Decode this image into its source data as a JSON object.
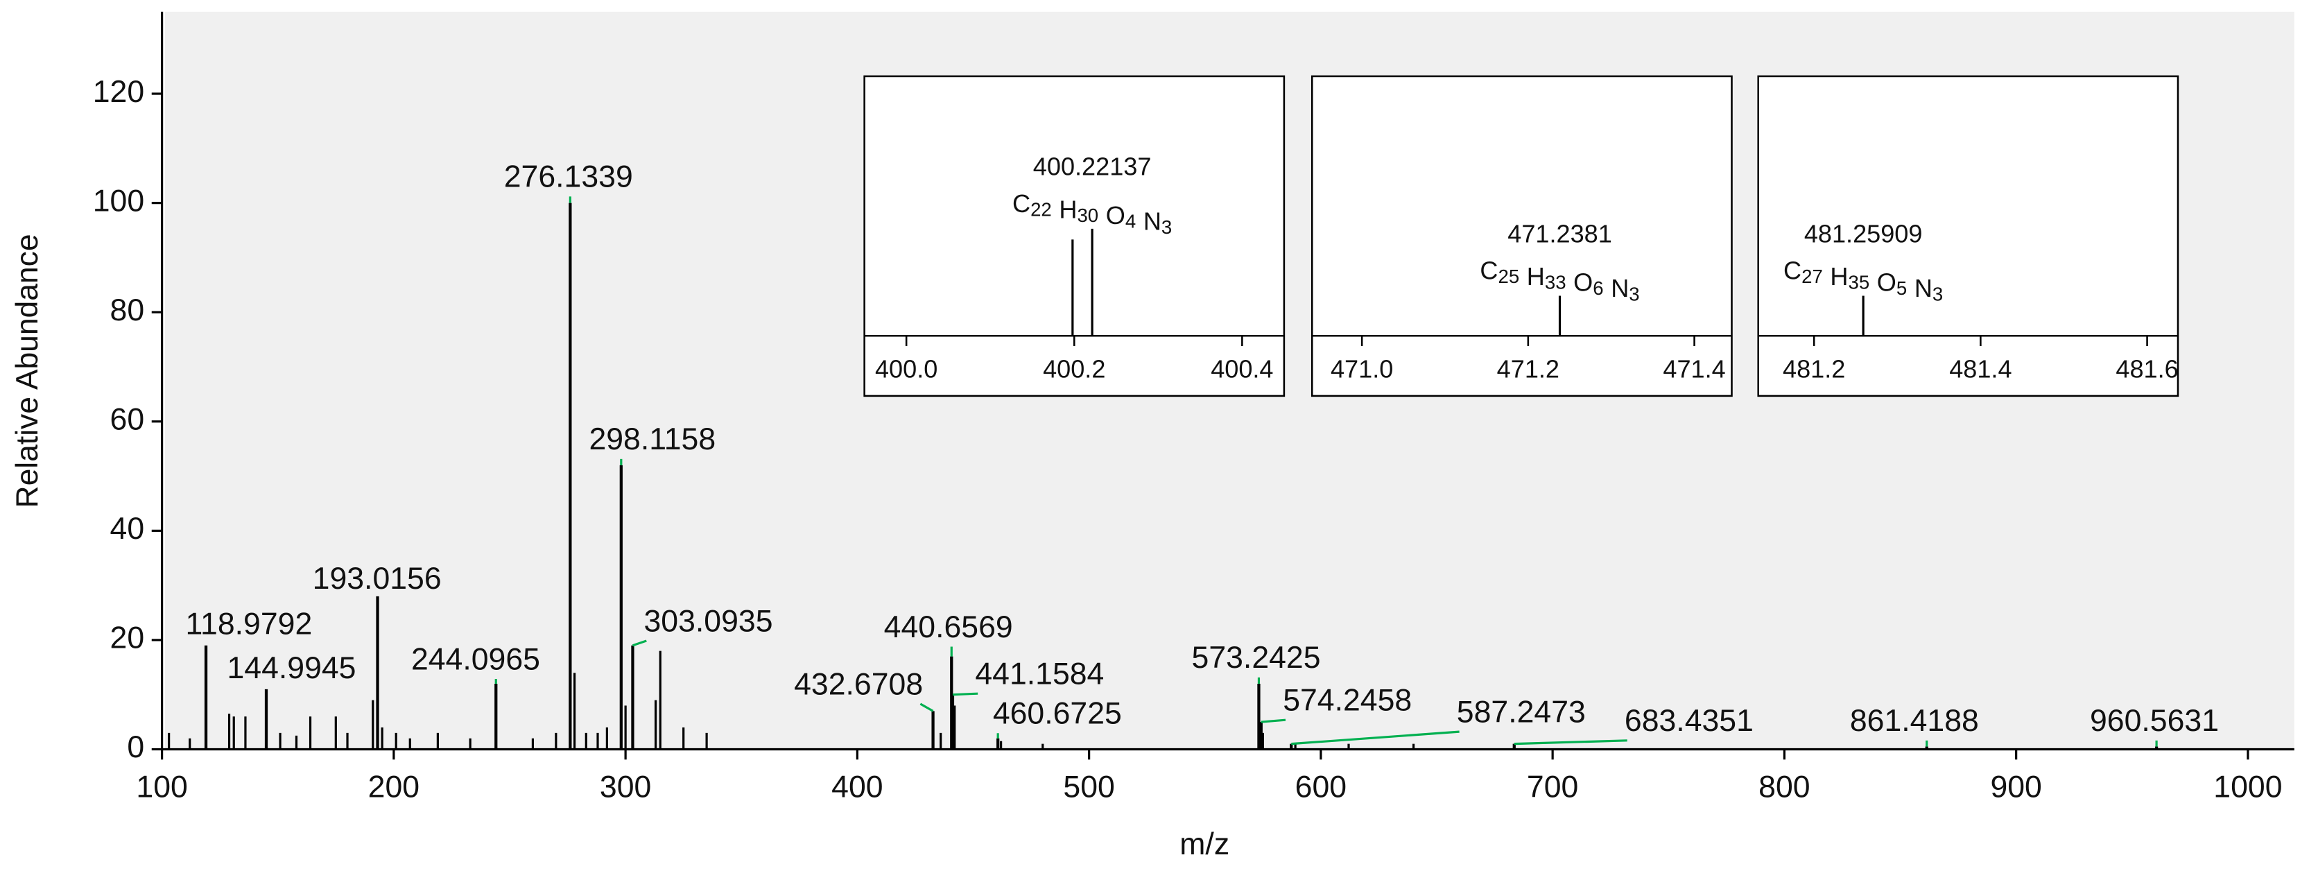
{
  "chart_data": [
    {
      "type": "bar",
      "xlabel": "m/z",
      "ylabel": "Relative Abundance",
      "xlim": [
        100,
        1020
      ],
      "ylim": [
        0,
        135
      ],
      "xticks": [
        100,
        200,
        300,
        400,
        500,
        600,
        700,
        800,
        900,
        1000
      ],
      "yticks": [
        0,
        20,
        40,
        60,
        80,
        100,
        120
      ],
      "color": "#000000",
      "label_line_color": "#00b050",
      "background": "#f0f0f0",
      "x": [
        118.9792,
        144.9945,
        193.0156,
        244.0965,
        276.1339,
        298.1158,
        303.0935,
        432.6708,
        440.6569,
        441.1584,
        460.6725,
        573.2425,
        574.2458,
        587.2473,
        683.4351,
        861.4188,
        960.5631
      ],
      "values": [
        19,
        11,
        28,
        12,
        100,
        52,
        19,
        7,
        17,
        10,
        2,
        12,
        5,
        1,
        1,
        0.5,
        0.5
      ],
      "minor_x": [
        103,
        112,
        129,
        131,
        136,
        151,
        158,
        164,
        175,
        180,
        191,
        195,
        201,
        207,
        219,
        233,
        260,
        270,
        278,
        283,
        288,
        292,
        300,
        313,
        315,
        325,
        335,
        436,
        442,
        462,
        480,
        575,
        589,
        612,
        640
      ],
      "minor_values": [
        3,
        2,
        6.5,
        6,
        6,
        3,
        2.5,
        6,
        6,
        3,
        9,
        4,
        3,
        2,
        3,
        2,
        2,
        3,
        14,
        3,
        3,
        4,
        8,
        9,
        18,
        4,
        3,
        3,
        8,
        1.5,
        1,
        3,
        1,
        1,
        1
      ]
    },
    {
      "type": "bar",
      "xlim": [
        399.95,
        400.45
      ],
      "ylim": [
        0,
        240
      ],
      "color": "#000000",
      "xticks": [
        {
          "value": 400.0,
          "label": "400.0"
        },
        {
          "value": 400.2,
          "label": "400.2"
        },
        {
          "value": 400.4,
          "label": "400.4"
        }
      ],
      "x": [
        400.198,
        400.22137
      ],
      "values": [
        89,
        99
      ],
      "annotation": {
        "mz": 400.22137,
        "formula": [
          {
            "symbol": "C",
            "count": 22
          },
          {
            "symbol": "H",
            "count": 30
          },
          {
            "symbol": "O",
            "count": 4
          },
          {
            "symbol": "N",
            "count": 3
          }
        ]
      }
    },
    {
      "type": "bar",
      "xlim": [
        470.94,
        471.445
      ],
      "ylim": [
        0,
        240
      ],
      "color": "#000000",
      "xticks": [
        {
          "value": 471.0,
          "label": "471.0"
        },
        {
          "value": 471.2,
          "label": "471.2"
        },
        {
          "value": 471.4,
          "label": "471.4"
        }
      ],
      "x": [
        471.2381
      ],
      "values": [
        37
      ],
      "annotation": {
        "mz": 471.2381,
        "formula": [
          {
            "symbol": "C",
            "count": 25
          },
          {
            "symbol": "H",
            "count": 33
          },
          {
            "symbol": "O",
            "count": 6
          },
          {
            "symbol": "N",
            "count": 3
          }
        ]
      }
    },
    {
      "type": "bar",
      "xlim": [
        481.133,
        481.637
      ],
      "ylim": [
        0,
        240
      ],
      "color": "#000000",
      "xticks": [
        {
          "value": 481.2,
          "label": "481.2"
        },
        {
          "value": 481.4,
          "label": "481.4"
        },
        {
          "value": 481.6,
          "label": "481.6"
        }
      ],
      "x": [
        481.25909
      ],
      "values": [
        37
      ],
      "annotation": {
        "mz": 481.25909,
        "formula": [
          {
            "symbol": "C",
            "count": 27
          },
          {
            "symbol": "H",
            "count": 35
          },
          {
            "symbol": "O",
            "count": 5
          },
          {
            "symbol": "N",
            "count": 3
          }
        ]
      }
    }
  ]
}
